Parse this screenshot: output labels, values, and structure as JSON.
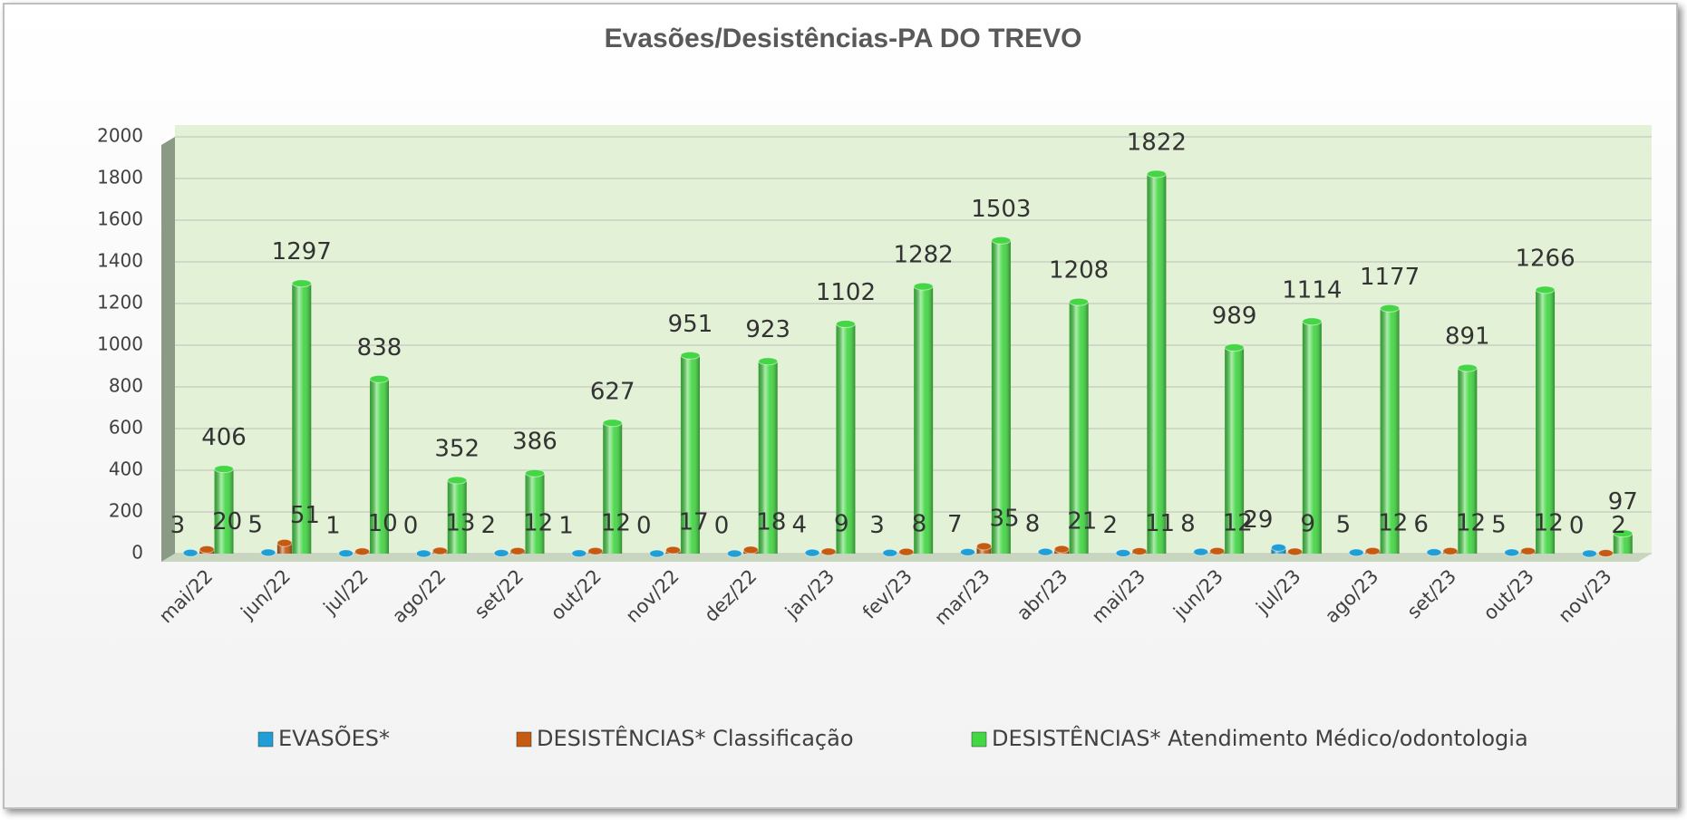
{
  "chart_data": {
    "type": "bar",
    "title": "Evasões/Desistências-PA DO TREVO",
    "categories": [
      "mai/22",
      "jun/22",
      "jul/22",
      "ago/22",
      "set/22",
      "out/22",
      "nov/22",
      "dez/22",
      "jan/23",
      "fev/23",
      "mar/23",
      "abr/23",
      "mai/23",
      "jun/23",
      "jul/23",
      "ago/23",
      "set/23",
      "out/23",
      "nov/23"
    ],
    "series": [
      {
        "name": "EVASÕES*",
        "color": "#1f9fd6",
        "values": [
          3,
          5,
          1,
          0,
          2,
          1,
          0,
          0,
          4,
          3,
          7,
          8,
          2,
          8,
          29,
          5,
          6,
          5,
          0
        ]
      },
      {
        "name": "DESISTÊNCIAS* Classificação",
        "color": "#c55a11",
        "values": [
          20,
          51,
          10,
          13,
          12,
          12,
          17,
          18,
          9,
          8,
          35,
          21,
          11,
          12,
          9,
          12,
          12,
          12,
          2
        ]
      },
      {
        "name": "DESISTÊNCIAS* Atendimento Médico/odontologia",
        "color": "#45d645",
        "values": [
          406,
          1297,
          838,
          352,
          386,
          627,
          951,
          923,
          1102,
          1282,
          1503,
          1208,
          1822,
          989,
          1114,
          1177,
          891,
          1266,
          97
        ]
      }
    ],
    "ylim": [
      0,
      2000
    ],
    "yticks": [
      0,
      200,
      400,
      600,
      800,
      1000,
      1200,
      1400,
      1600,
      1800,
      2000
    ],
    "grid": true,
    "legend": "bottom"
  }
}
